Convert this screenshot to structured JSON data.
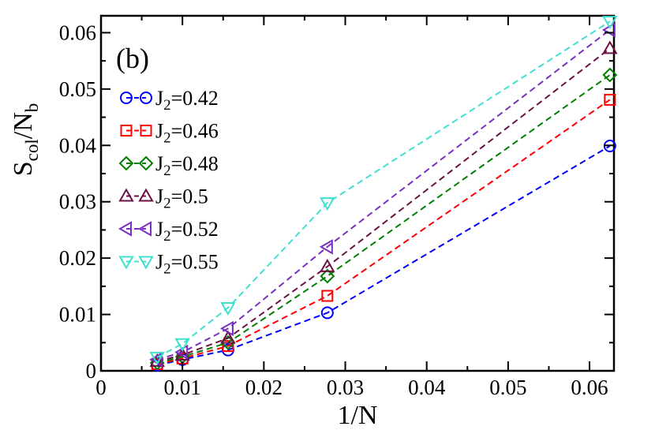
{
  "chart_data": {
    "type": "line",
    "panel_label": "(b)",
    "xlabel": "1/N",
    "ylabel_main": "S",
    "ylabel_sub": "col",
    "ylabel_mid": "/N",
    "ylabel_sub2": "b",
    "xlim": [
      0,
      0.063
    ],
    "ylim": [
      0,
      0.063
    ],
    "xticks": [
      0,
      0.01,
      0.02,
      0.03,
      0.04,
      0.05,
      0.06
    ],
    "xtick_labels": [
      "0",
      "0.01",
      "0.02",
      "0.03",
      "0.04",
      "0.05",
      "0.06"
    ],
    "yticks": [
      0,
      0.01,
      0.02,
      0.03,
      0.04,
      0.05,
      0.06
    ],
    "ytick_labels": [
      "0",
      "0.01",
      "0.02",
      "0.03",
      "0.04",
      "0.05",
      "0.06"
    ],
    "legend_position": "top-left",
    "x": [
      0.0069,
      0.01,
      0.0156,
      0.0278,
      0.0625
    ],
    "series": [
      {
        "name": "J2=0.42",
        "legend_prefix": "J",
        "legend_sub": "2",
        "legend_value": "=0.42",
        "marker": "circle",
        "color": "#0000ff",
        "values": [
          0.001,
          0.002,
          0.0037,
          0.0103,
          0.0399
        ]
      },
      {
        "name": "J2=0.46",
        "legend_prefix": "J",
        "legend_sub": "2",
        "legend_value": "=0.46",
        "marker": "square",
        "color": "#ff0000",
        "values": [
          0.0012,
          0.0022,
          0.0044,
          0.0133,
          0.0481
        ]
      },
      {
        "name": "J2=0.48",
        "legend_prefix": "J",
        "legend_sub": "2",
        "legend_value": "=0.48",
        "marker": "diamond",
        "color": "#008000",
        "values": [
          0.0014,
          0.0025,
          0.005,
          0.0168,
          0.0525
        ]
      },
      {
        "name": "J2=0.5",
        "legend_prefix": "J",
        "legend_sub": "2",
        "legend_value": "=0.5",
        "marker": "triangle-up",
        "color": "#6b1045",
        "values": [
          0.0017,
          0.0028,
          0.0058,
          0.0185,
          0.0572
        ]
      },
      {
        "name": "J2=0.52",
        "legend_prefix": "J",
        "legend_sub": "2",
        "legend_value": "=0.52",
        "marker": "triangle-left",
        "color": "#7a2fbf",
        "values": [
          0.002,
          0.0033,
          0.0075,
          0.022,
          0.0605
        ]
      },
      {
        "name": "J2=0.55",
        "legend_prefix": "J",
        "legend_sub": "2",
        "legend_value": "=0.55",
        "marker": "triangle-down",
        "color": "#40e0d0",
        "values": [
          0.0024,
          0.0048,
          0.0112,
          0.0298,
          0.062
        ]
      }
    ]
  }
}
